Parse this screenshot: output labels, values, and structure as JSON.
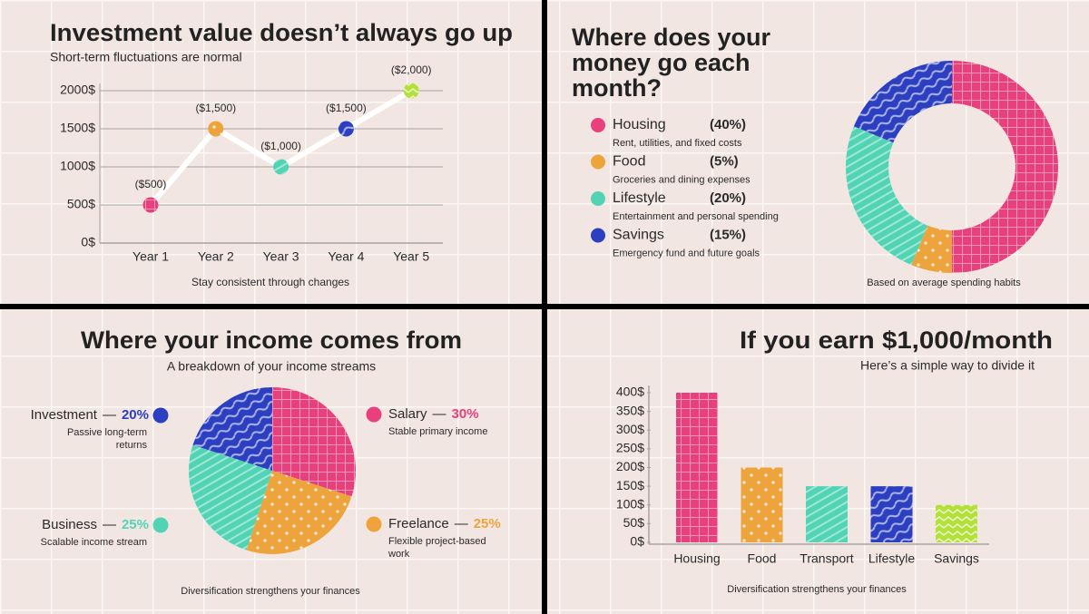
{
  "chart_data": [
    {
      "type": "line",
      "title": "Investment value doesn’t always go up",
      "subtitle": "Short-term fluctuations are normal",
      "categories": [
        "Year 1",
        "Year 2",
        "Year 3",
        "Year 4",
        "Year 5"
      ],
      "values": [
        500,
        1500,
        1000,
        1500,
        2000
      ],
      "value_labels": [
        "($500)",
        "($1,500)",
        "($1,000)",
        "($1,500)",
        "($2,000)"
      ],
      "colors": [
        "#e8407c",
        "#eea43c",
        "#52d4b4",
        "#2c3fc0",
        "#b4e03c"
      ],
      "line_color": "#ffffff",
      "ylim": [
        0,
        2000
      ],
      "yticks": [
        {
          "value": 0,
          "label": "0$"
        },
        {
          "value": 500,
          "label": "500$"
        },
        {
          "value": 1000,
          "label": "1000$"
        },
        {
          "value": 1500,
          "label": "1500$"
        },
        {
          "value": 2000,
          "label": "2000$"
        }
      ],
      "grid": true,
      "footnote": "Stay consistent through changes"
    },
    {
      "type": "donut",
      "title": "Where does your money go each month?",
      "categories": [
        "Housing",
        "Food",
        "Lifestyle",
        "Savings"
      ],
      "values": [
        40,
        5,
        20,
        15
      ],
      "value_labels": [
        "(40%)",
        "(5%)",
        "(20%)",
        "(15%)"
      ],
      "descriptions": [
        "Rent, utilities, and fixed costs",
        "Groceries and dining expenses",
        "Entertainment and personal spending",
        "Emergency fund and future goals"
      ],
      "colors": [
        "#e8407c",
        "#eea43c",
        "#52d4b4",
        "#2c3fc0"
      ],
      "footnote": "Based on average spending habits"
    },
    {
      "type": "pie",
      "title": "Where your income comes from",
      "subtitle": "A breakdown of your income streams",
      "categories": [
        "Salary",
        "Freelance",
        "Business",
        "Investment"
      ],
      "values": [
        30,
        25,
        25,
        20
      ],
      "value_labels": [
        "30%",
        "25%",
        "25%",
        "20%"
      ],
      "separator": "—",
      "descriptions": [
        "Stable primary income",
        "Flexible project-based work",
        "Scalable income stream",
        "Passive long-term returns"
      ],
      "colors": [
        "#e8407c",
        "#eea43c",
        "#52d4b4",
        "#2c3fc0"
      ],
      "footnote": "Diversification strengthens your finances"
    },
    {
      "type": "bar",
      "title": "If you earn $1,000/month",
      "subtitle": "Here’s a simple way to divide it",
      "categories": [
        "Housing",
        "Food",
        "Transport",
        "Lifestyle",
        "Savings"
      ],
      "values": [
        400,
        200,
        150,
        150,
        100
      ],
      "colors": [
        "#e8407c",
        "#eea43c",
        "#52d4b4",
        "#2c3fc0",
        "#b4e03c"
      ],
      "ylim": [
        0,
        400
      ],
      "yticks": [
        {
          "value": 0,
          "label": "0$"
        },
        {
          "value": 50,
          "label": "50$"
        },
        {
          "value": 100,
          "label": "100$"
        },
        {
          "value": 150,
          "label": "150$"
        },
        {
          "value": 200,
          "label": "200$"
        },
        {
          "value": 250,
          "label": "250$"
        },
        {
          "value": 300,
          "label": "300$"
        },
        {
          "value": 350,
          "label": "350$"
        },
        {
          "value": 400,
          "label": "400$"
        }
      ],
      "grid": false,
      "footnote": "Diversification strengthens your finances"
    }
  ]
}
